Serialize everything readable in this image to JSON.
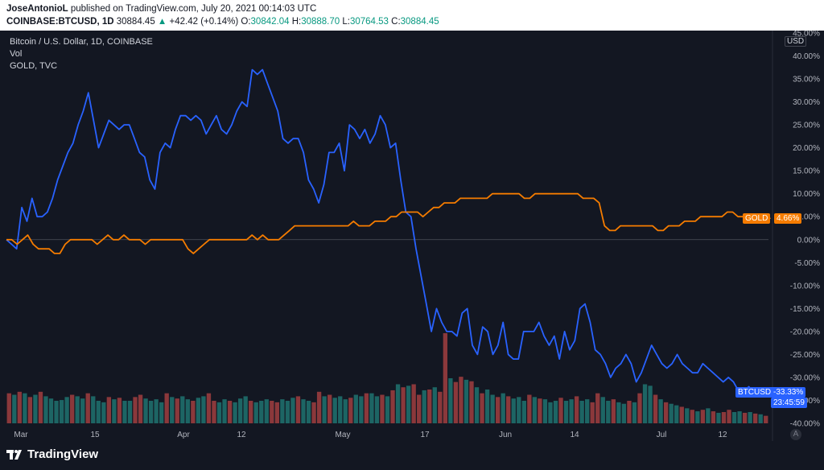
{
  "header": {
    "author": "JoseAntonioL",
    "published_text": "published on TradingView.com, July 20, 2021 00:14:03 UTC",
    "symbol": "COINBASE:BTCUSD, 1D",
    "last": "30884.45",
    "change_arrow": "▲",
    "change": "+42.42 (+0.14%)",
    "o_label": "O:",
    "o": "30842.04",
    "h_label": "H:",
    "h": "30888.70",
    "l_label": "L:",
    "l": "30764.53",
    "c_label": "C:",
    "c": "30884.45"
  },
  "legend": {
    "main": "Bitcoin / U.S. Dollar, 1D, COINBASE",
    "vol": "Vol",
    "compare": "GOLD, TVC"
  },
  "axis": {
    "currency": "USD",
    "y_ticks": [
      "45.00%",
      "40.00%",
      "35.00%",
      "30.00%",
      "25.00%",
      "20.00%",
      "15.00%",
      "10.00%",
      "5.00%",
      "0.00%",
      "-5.00%",
      "-10.00%",
      "-15.00%",
      "-20.00%",
      "-25.00%",
      "-30.00%",
      "-35.00%",
      "-40.00%"
    ],
    "x_ticks": [
      "Mar",
      "15",
      "Apr",
      "12",
      "May",
      "17",
      "Jun",
      "14",
      "Jul",
      "12"
    ]
  },
  "tags": {
    "gold_label": "GOLD",
    "gold_value": "4.66%",
    "btc_label": "BTCUSD",
    "btc_value": "-33.33%",
    "countdown": "23:45:59"
  },
  "footer": {
    "brand": "TradingView",
    "auto_scale": "A"
  },
  "colors": {
    "background": "#131722",
    "btc_line": "#2962ff",
    "gold_line": "#f57c00",
    "vol_up": "#26a69a",
    "vol_down": "#ef5350"
  },
  "chart_data": {
    "type": "line",
    "y_unit": "%",
    "ylim": [
      -40,
      45
    ],
    "x_tick_labels": [
      "Mar",
      "15",
      "Apr",
      "12",
      "May",
      "17",
      "Jun",
      "14",
      "Jul",
      "12"
    ],
    "series": [
      {
        "name": "BTCUSD",
        "color": "#2962ff",
        "values": [
          0,
          -1,
          -2,
          7,
          4,
          9,
          5,
          5,
          6,
          9,
          13,
          16,
          19,
          21,
          25,
          28,
          32,
          26,
          20,
          23,
          26,
          25,
          24,
          25,
          25,
          22,
          19,
          18,
          13,
          11,
          19,
          21,
          20,
          24,
          27,
          27,
          26,
          27,
          26,
          23,
          25,
          27,
          24,
          23,
          25,
          28,
          30,
          29,
          37,
          36,
          37,
          34,
          31,
          28,
          22,
          21,
          22,
          22,
          19,
          13,
          11,
          8,
          12,
          19,
          19,
          21,
          15,
          25,
          24,
          22,
          24,
          21,
          23,
          27,
          25,
          20,
          21,
          13,
          6,
          5,
          -2,
          -8,
          -14,
          -20,
          -15,
          -18,
          -20,
          -20,
          -21,
          -16,
          -15,
          -23,
          -25,
          -19,
          -20,
          -25,
          -23,
          -18,
          -25,
          -26,
          -26,
          -20,
          -20,
          -20,
          -18,
          -21,
          -23,
          -21,
          -26,
          -20,
          -24,
          -22,
          -15,
          -14,
          -18,
          -24,
          -25,
          -27,
          -30,
          -28,
          -27,
          -25,
          -27,
          -31,
          -29,
          -26,
          -23,
          -25,
          -27,
          -28,
          -27,
          -25,
          -27,
          -28,
          -29,
          -29,
          -27,
          -28,
          -29,
          -30,
          -31,
          -30,
          -31,
          -33,
          -33,
          -32,
          -33.33
        ]
      },
      {
        "name": "GOLD",
        "color": "#f57c00",
        "values": [
          0,
          0,
          -1,
          0,
          1,
          -1,
          -2,
          -2,
          -2,
          -3,
          -3,
          -1,
          0,
          0,
          0,
          0,
          0,
          -1,
          0,
          1,
          0,
          0,
          1,
          0,
          0,
          0,
          -1,
          0,
          0,
          0,
          0,
          0,
          0,
          0,
          -2,
          -3,
          -2,
          -1,
          0,
          0,
          0,
          0,
          0,
          0,
          0,
          0,
          1,
          0,
          1,
          0,
          0,
          0,
          1,
          2,
          3,
          3,
          3,
          3,
          3,
          3,
          3,
          3,
          3,
          3,
          3,
          4,
          3,
          3,
          3,
          4,
          4,
          4,
          5,
          5,
          6,
          6,
          6,
          6,
          5,
          6,
          7,
          7,
          8,
          8,
          8,
          9,
          9,
          9,
          9,
          9,
          9,
          10,
          10,
          10,
          10,
          10,
          10,
          9,
          9,
          10,
          10,
          10,
          10,
          10,
          10,
          10,
          10,
          10,
          9,
          9,
          9,
          8,
          3,
          2,
          2,
          3,
          3,
          3,
          3,
          3,
          3,
          3,
          2,
          2,
          3,
          3,
          3,
          4,
          4,
          4,
          5,
          5,
          5,
          5,
          5,
          6,
          6,
          5,
          5,
          5,
          4.66
        ]
      }
    ],
    "volume": {
      "up_color": "#26a69a",
      "down_color": "#ef5350",
      "bars": [
        {
          "v": 40,
          "up": false
        },
        {
          "v": 38,
          "up": true
        },
        {
          "v": 42,
          "up": false
        },
        {
          "v": 40,
          "up": true
        },
        {
          "v": 35,
          "up": false
        },
        {
          "v": 38,
          "up": true
        },
        {
          "v": 42,
          "up": false
        },
        {
          "v": 36,
          "up": true
        },
        {
          "v": 33,
          "up": true
        },
        {
          "v": 30,
          "up": true
        },
        {
          "v": 31,
          "up": true
        },
        {
          "v": 35,
          "up": true
        },
        {
          "v": 38,
          "up": false
        },
        {
          "v": 36,
          "up": true
        },
        {
          "v": 33,
          "up": true
        },
        {
          "v": 40,
          "up": false
        },
        {
          "v": 36,
          "up": true
        },
        {
          "v": 30,
          "up": true
        },
        {
          "v": 28,
          "up": true
        },
        {
          "v": 35,
          "up": false
        },
        {
          "v": 32,
          "up": true
        },
        {
          "v": 34,
          "up": false
        },
        {
          "v": 30,
          "up": true
        },
        {
          "v": 30,
          "up": true
        },
        {
          "v": 35,
          "up": false
        },
        {
          "v": 38,
          "up": false
        },
        {
          "v": 33,
          "up": true
        },
        {
          "v": 30,
          "up": true
        },
        {
          "v": 32,
          "up": true
        },
        {
          "v": 28,
          "up": true
        },
        {
          "v": 40,
          "up": false
        },
        {
          "v": 35,
          "up": true
        },
        {
          "v": 33,
          "up": false
        },
        {
          "v": 36,
          "up": true
        },
        {
          "v": 32,
          "up": true
        },
        {
          "v": 30,
          "up": false
        },
        {
          "v": 34,
          "up": true
        },
        {
          "v": 36,
          "up": true
        },
        {
          "v": 40,
          "up": false
        },
        {
          "v": 30,
          "up": false
        },
        {
          "v": 28,
          "up": true
        },
        {
          "v": 32,
          "up": true
        },
        {
          "v": 30,
          "up": false
        },
        {
          "v": 28,
          "up": true
        },
        {
          "v": 33,
          "up": true
        },
        {
          "v": 36,
          "up": true
        },
        {
          "v": 30,
          "up": false
        },
        {
          "v": 28,
          "up": true
        },
        {
          "v": 30,
          "up": true
        },
        {
          "v": 32,
          "up": true
        },
        {
          "v": 30,
          "up": false
        },
        {
          "v": 28,
          "up": false
        },
        {
          "v": 32,
          "up": true
        },
        {
          "v": 30,
          "up": true
        },
        {
          "v": 34,
          "up": true
        },
        {
          "v": 36,
          "up": false
        },
        {
          "v": 32,
          "up": true
        },
        {
          "v": 30,
          "up": true
        },
        {
          "v": 28,
          "up": false
        },
        {
          "v": 42,
          "up": false
        },
        {
          "v": 36,
          "up": true
        },
        {
          "v": 38,
          "up": false
        },
        {
          "v": 34,
          "up": true
        },
        {
          "v": 36,
          "up": true
        },
        {
          "v": 32,
          "up": true
        },
        {
          "v": 34,
          "up": false
        },
        {
          "v": 38,
          "up": true
        },
        {
          "v": 36,
          "up": true
        },
        {
          "v": 40,
          "up": false
        },
        {
          "v": 40,
          "up": true
        },
        {
          "v": 36,
          "up": true
        },
        {
          "v": 38,
          "up": false
        },
        {
          "v": 36,
          "up": true
        },
        {
          "v": 44,
          "up": false
        },
        {
          "v": 52,
          "up": true
        },
        {
          "v": 48,
          "up": false
        },
        {
          "v": 50,
          "up": true
        },
        {
          "v": 52,
          "up": false
        },
        {
          "v": 38,
          "up": false
        },
        {
          "v": 44,
          "up": true
        },
        {
          "v": 45,
          "up": false
        },
        {
          "v": 48,
          "up": true
        },
        {
          "v": 42,
          "up": false
        },
        {
          "v": 120,
          "up": false
        },
        {
          "v": 60,
          "up": true
        },
        {
          "v": 55,
          "up": false
        },
        {
          "v": 62,
          "up": false
        },
        {
          "v": 58,
          "up": true
        },
        {
          "v": 56,
          "up": false
        },
        {
          "v": 48,
          "up": true
        },
        {
          "v": 40,
          "up": false
        },
        {
          "v": 45,
          "up": true
        },
        {
          "v": 38,
          "up": true
        },
        {
          "v": 35,
          "up": false
        },
        {
          "v": 40,
          "up": true
        },
        {
          "v": 36,
          "up": false
        },
        {
          "v": 33,
          "up": true
        },
        {
          "v": 35,
          "up": true
        },
        {
          "v": 30,
          "up": true
        },
        {
          "v": 38,
          "up": false
        },
        {
          "v": 35,
          "up": true
        },
        {
          "v": 33,
          "up": false
        },
        {
          "v": 32,
          "up": true
        },
        {
          "v": 28,
          "up": true
        },
        {
          "v": 30,
          "up": true
        },
        {
          "v": 34,
          "up": false
        },
        {
          "v": 30,
          "up": true
        },
        {
          "v": 32,
          "up": true
        },
        {
          "v": 36,
          "up": false
        },
        {
          "v": 30,
          "up": true
        },
        {
          "v": 32,
          "up": true
        },
        {
          "v": 28,
          "up": false
        },
        {
          "v": 40,
          "up": false
        },
        {
          "v": 35,
          "up": true
        },
        {
          "v": 30,
          "up": true
        },
        {
          "v": 32,
          "up": false
        },
        {
          "v": 28,
          "up": true
        },
        {
          "v": 26,
          "up": true
        },
        {
          "v": 30,
          "up": false
        },
        {
          "v": 28,
          "up": true
        },
        {
          "v": 40,
          "up": false
        },
        {
          "v": 52,
          "up": true
        },
        {
          "v": 50,
          "up": true
        },
        {
          "v": 38,
          "up": false
        },
        {
          "v": 32,
          "up": true
        },
        {
          "v": 28,
          "up": false
        },
        {
          "v": 26,
          "up": true
        },
        {
          "v": 24,
          "up": true
        },
        {
          "v": 22,
          "up": false
        },
        {
          "v": 20,
          "up": true
        },
        {
          "v": 18,
          "up": false
        },
        {
          "v": 16,
          "up": true
        },
        {
          "v": 18,
          "up": false
        },
        {
          "v": 20,
          "up": true
        },
        {
          "v": 16,
          "up": false
        },
        {
          "v": 14,
          "up": true
        },
        {
          "v": 15,
          "up": false
        },
        {
          "v": 18,
          "up": false
        },
        {
          "v": 15,
          "up": true
        },
        {
          "v": 16,
          "up": true
        },
        {
          "v": 14,
          "up": false
        },
        {
          "v": 15,
          "up": true
        },
        {
          "v": 13,
          "up": false
        },
        {
          "v": 12,
          "up": true
        },
        {
          "v": 10,
          "up": false
        }
      ]
    }
  }
}
